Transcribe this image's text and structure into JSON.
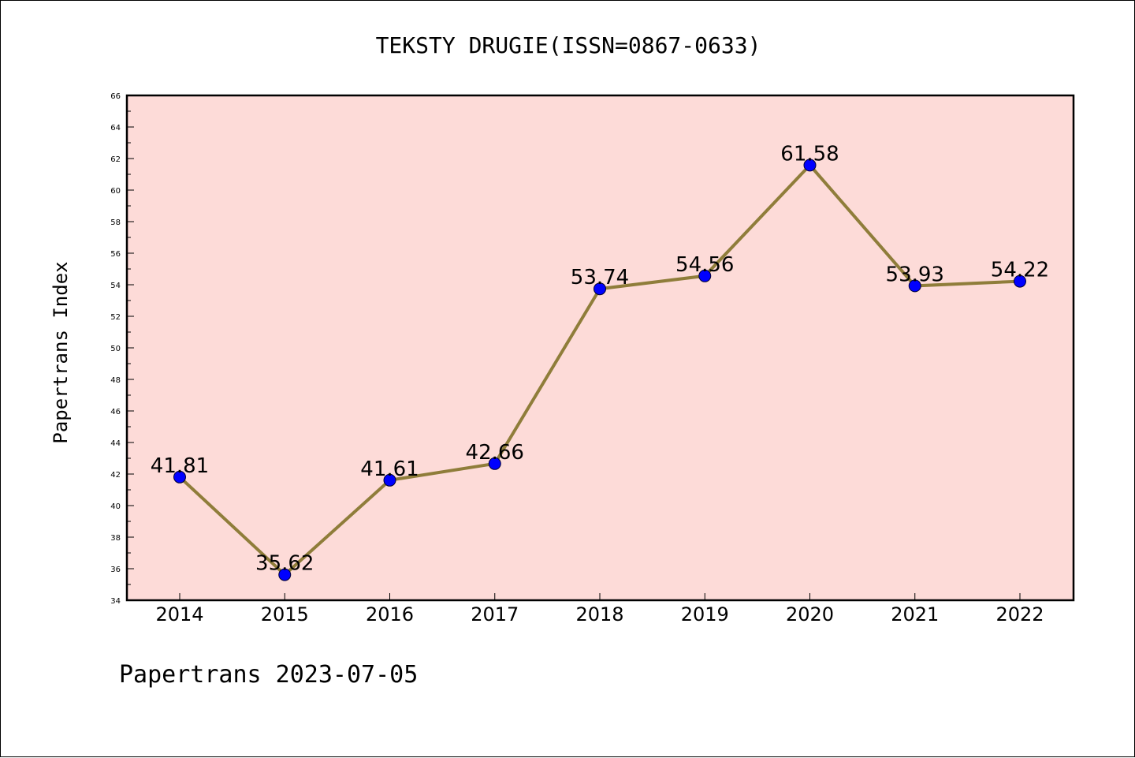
{
  "chart_data": {
    "type": "line",
    "title": "TEKSTY DRUGIE(ISSN=0867-0633)",
    "ylabel": "Papertrans Index",
    "footer": "Papertrans 2023-07-05",
    "categories": [
      "2014",
      "2015",
      "2016",
      "2017",
      "2018",
      "2019",
      "2020",
      "2021",
      "2022"
    ],
    "values": [
      41.81,
      35.62,
      41.61,
      42.66,
      53.74,
      54.56,
      61.58,
      53.93,
      54.22
    ],
    "value_labels": [
      "41.81",
      "35.62",
      "41.61",
      "42.66",
      "53.74",
      "54.56",
      "61.58",
      "53.93",
      "54.22"
    ],
    "ylim": [
      34,
      66
    ],
    "yticks": [
      34,
      36,
      38,
      40,
      42,
      44,
      46,
      48,
      50,
      52,
      54,
      56,
      58,
      60,
      62,
      64,
      66
    ],
    "grid": false,
    "colors": {
      "plot_background": "#fddbd8",
      "line": "#8f7d3a",
      "marker": "#0000ff"
    }
  }
}
